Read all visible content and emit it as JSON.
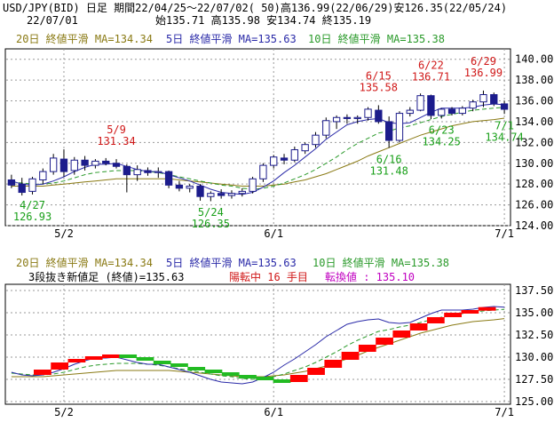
{
  "header": {
    "line1": "USD/JPY(BID) 日足 期間22/04/25～22/07/02( 50)高136.99(22/06/29)安126.35(22/05/24)",
    "line2_date": "22/07/01",
    "line2_ohlc": "始135.71 高135.98 安134.74 終135.19"
  },
  "legend": {
    "ma20": "20日 終値平滑 MA=134.34",
    "ma5": "5日 終値平滑 MA=135.63",
    "ma10": "10日 終値平滑 MA=135.38"
  },
  "indicator": {
    "label_a": "3段抜き新値足 (終値)=135.63",
    "label_b": "陽転中 16 手目",
    "label_c": "転換値 : 135.10"
  },
  "colors": {
    "up_candle": "#ffffff",
    "down_candle": "#1c1c8c",
    "ma5": "#2a2aa8",
    "ma10": "#2a9a2a",
    "ma20": "#8a7a14",
    "high_label": "#d01818",
    "low_label": "#1aa01a",
    "block_up": "#ff0000",
    "block_down": "#22bb22"
  },
  "chart_data": [
    {
      "type": "candlestick",
      "x_ticks": [
        "5/2",
        "6/1",
        "7/1"
      ],
      "y_ticks": [
        "124.00",
        "126.00",
        "128.00",
        "130.00",
        "132.00",
        "134.00",
        "136.00",
        "138.00",
        "140.00"
      ],
      "ylim": [
        124,
        141
      ],
      "annotations": [
        {
          "date": "4/27",
          "value": "126.93",
          "kind": "low"
        },
        {
          "date": "5/9",
          "value": "131.34",
          "kind": "high"
        },
        {
          "date": "5/24",
          "value": "126.35",
          "kind": "low"
        },
        {
          "date": "6/15",
          "value": "135.58",
          "kind": "high"
        },
        {
          "date": "6/16",
          "value": "131.48",
          "kind": "low"
        },
        {
          "date": "6/22",
          "value": "136.71",
          "kind": "high"
        },
        {
          "date": "6/23",
          "value": "134.25",
          "kind": "low"
        },
        {
          "date": "6/29",
          "value": "136.99",
          "kind": "high"
        },
        {
          "date": "7/1",
          "value": "134.74",
          "kind": "low"
        }
      ],
      "candles": [
        {
          "o": 128.4,
          "h": 128.9,
          "l": 127.6,
          "c": 127.9
        },
        {
          "o": 128.0,
          "h": 128.6,
          "l": 126.9,
          "c": 127.2
        },
        {
          "o": 127.3,
          "h": 128.7,
          "l": 127.0,
          "c": 128.5
        },
        {
          "o": 128.4,
          "h": 129.5,
          "l": 128.0,
          "c": 129.2
        },
        {
          "o": 129.2,
          "h": 130.9,
          "l": 128.9,
          "c": 130.5
        },
        {
          "o": 130.4,
          "h": 131.34,
          "l": 128.7,
          "c": 129.2
        },
        {
          "o": 129.3,
          "h": 130.6,
          "l": 128.9,
          "c": 130.3
        },
        {
          "o": 130.3,
          "h": 130.7,
          "l": 129.3,
          "c": 129.8
        },
        {
          "o": 129.8,
          "h": 130.4,
          "l": 129.5,
          "c": 130.2
        },
        {
          "o": 130.2,
          "h": 130.5,
          "l": 129.8,
          "c": 130.0
        },
        {
          "o": 130.0,
          "h": 130.4,
          "l": 129.5,
          "c": 129.7
        },
        {
          "o": 129.7,
          "h": 129.9,
          "l": 127.2,
          "c": 128.9
        },
        {
          "o": 128.9,
          "h": 129.8,
          "l": 128.3,
          "c": 129.4
        },
        {
          "o": 129.3,
          "h": 129.6,
          "l": 128.8,
          "c": 129.1
        },
        {
          "o": 129.1,
          "h": 129.6,
          "l": 128.6,
          "c": 129.2
        },
        {
          "o": 129.2,
          "h": 129.3,
          "l": 127.6,
          "c": 127.9
        },
        {
          "o": 127.9,
          "h": 128.3,
          "l": 127.3,
          "c": 127.6
        },
        {
          "o": 127.6,
          "h": 128.0,
          "l": 127.2,
          "c": 127.8
        },
        {
          "o": 127.8,
          "h": 128.0,
          "l": 126.4,
          "c": 126.8
        },
        {
          "o": 126.8,
          "h": 127.3,
          "l": 126.35,
          "c": 127.1
        },
        {
          "o": 127.1,
          "h": 127.5,
          "l": 126.6,
          "c": 126.9
        },
        {
          "o": 126.9,
          "h": 127.4,
          "l": 126.6,
          "c": 127.1
        },
        {
          "o": 127.1,
          "h": 127.6,
          "l": 126.8,
          "c": 127.3
        },
        {
          "o": 127.3,
          "h": 128.7,
          "l": 127.1,
          "c": 128.5
        },
        {
          "o": 128.5,
          "h": 130.0,
          "l": 128.2,
          "c": 129.8
        },
        {
          "o": 129.8,
          "h": 130.8,
          "l": 129.5,
          "c": 130.6
        },
        {
          "o": 130.5,
          "h": 130.9,
          "l": 129.9,
          "c": 130.3
        },
        {
          "o": 130.3,
          "h": 131.6,
          "l": 130.1,
          "c": 131.3
        },
        {
          "o": 131.2,
          "h": 132.0,
          "l": 130.9,
          "c": 131.8
        },
        {
          "o": 131.8,
          "h": 133.0,
          "l": 131.5,
          "c": 132.7
        },
        {
          "o": 132.7,
          "h": 134.4,
          "l": 132.4,
          "c": 134.1
        },
        {
          "o": 134.0,
          "h": 134.6,
          "l": 133.3,
          "c": 134.4
        },
        {
          "o": 134.4,
          "h": 134.7,
          "l": 133.8,
          "c": 134.3
        },
        {
          "o": 134.3,
          "h": 134.6,
          "l": 133.8,
          "c": 134.4
        },
        {
          "o": 134.4,
          "h": 135.4,
          "l": 134.1,
          "c": 135.2
        },
        {
          "o": 135.1,
          "h": 135.58,
          "l": 133.8,
          "c": 134.0
        },
        {
          "o": 134.0,
          "h": 134.5,
          "l": 131.48,
          "c": 132.2
        },
        {
          "o": 132.2,
          "h": 135.0,
          "l": 132.0,
          "c": 134.8
        },
        {
          "o": 134.8,
          "h": 135.4,
          "l": 134.5,
          "c": 135.1
        },
        {
          "o": 135.1,
          "h": 136.71,
          "l": 135.0,
          "c": 136.5
        },
        {
          "o": 136.5,
          "h": 136.6,
          "l": 134.25,
          "c": 134.6
        },
        {
          "o": 134.6,
          "h": 135.3,
          "l": 134.3,
          "c": 135.2
        },
        {
          "o": 135.2,
          "h": 135.4,
          "l": 134.6,
          "c": 134.8
        },
        {
          "o": 134.8,
          "h": 135.5,
          "l": 134.6,
          "c": 135.3
        },
        {
          "o": 135.3,
          "h": 136.1,
          "l": 135.0,
          "c": 135.9
        },
        {
          "o": 135.9,
          "h": 136.99,
          "l": 135.4,
          "c": 136.6
        },
        {
          "o": 136.6,
          "h": 136.8,
          "l": 135.5,
          "c": 135.7
        },
        {
          "o": 135.71,
          "h": 135.98,
          "l": 134.74,
          "c": 135.19
        }
      ],
      "ma5": [
        128.3,
        128.0,
        127.9,
        128.0,
        128.3,
        128.7,
        129.2,
        129.6,
        129.9,
        129.9,
        130.0,
        129.7,
        129.4,
        129.2,
        129.2,
        128.9,
        128.6,
        128.3,
        127.9,
        127.5,
        127.2,
        127.1,
        127.0,
        127.2,
        127.7,
        128.3,
        129.1,
        129.8,
        130.6,
        131.4,
        132.3,
        133.0,
        133.7,
        134.0,
        134.2,
        134.3,
        133.9,
        133.8,
        133.9,
        134.4,
        134.9,
        135.3,
        135.3,
        135.3,
        135.4,
        135.6,
        135.7,
        135.63
      ],
      "ma10": [
        128.2,
        128.1,
        128.0,
        128.0,
        128.1,
        128.3,
        128.6,
        128.9,
        129.1,
        129.2,
        129.3,
        129.3,
        129.3,
        129.2,
        129.1,
        128.9,
        128.7,
        128.5,
        128.3,
        128.1,
        127.9,
        127.8,
        127.6,
        127.5,
        127.6,
        127.8,
        128.1,
        128.5,
        128.9,
        129.4,
        130.0,
        130.6,
        131.3,
        131.9,
        132.4,
        132.9,
        133.1,
        133.4,
        133.6,
        133.9,
        134.2,
        134.5,
        134.7,
        134.9,
        135.1,
        135.2,
        135.3,
        135.38
      ],
      "ma20": [
        127.8,
        127.8,
        127.8,
        127.8,
        127.9,
        128.0,
        128.1,
        128.2,
        128.3,
        128.4,
        128.5,
        128.5,
        128.5,
        128.5,
        128.5,
        128.5,
        128.4,
        128.3,
        128.2,
        128.1,
        128.0,
        127.9,
        127.8,
        127.8,
        127.8,
        127.9,
        128.0,
        128.2,
        128.4,
        128.7,
        129.0,
        129.4,
        129.8,
        130.2,
        130.7,
        131.1,
        131.5,
        131.9,
        132.3,
        132.7,
        133.0,
        133.3,
        133.6,
        133.8,
        134.0,
        134.1,
        134.2,
        134.34
      ]
    },
    {
      "type": "new-price-blocks",
      "x_ticks": [
        "5/2",
        "6/1",
        "7/1"
      ],
      "y_ticks": [
        "125.00",
        "127.50",
        "130.00",
        "132.50",
        "135.00",
        "137.50"
      ],
      "ylim": [
        124.7,
        138.2
      ],
      "blocks": [
        {
          "from": 128.0,
          "to": 128.6,
          "dir": "up"
        },
        {
          "from": 128.6,
          "to": 129.4,
          "dir": "up"
        },
        {
          "from": 129.4,
          "to": 129.8,
          "dir": "up"
        },
        {
          "from": 129.8,
          "to": 130.1,
          "dir": "up"
        },
        {
          "from": 130.1,
          "to": 130.3,
          "dir": "up"
        },
        {
          "from": 130.3,
          "to": 130.0,
          "dir": "down"
        },
        {
          "from": 130.0,
          "to": 129.6,
          "dir": "down"
        },
        {
          "from": 129.6,
          "to": 129.3,
          "dir": "down"
        },
        {
          "from": 129.3,
          "to": 128.9,
          "dir": "down"
        },
        {
          "from": 128.9,
          "to": 128.6,
          "dir": "down"
        },
        {
          "from": 128.6,
          "to": 128.3,
          "dir": "down"
        },
        {
          "from": 128.3,
          "to": 128.0,
          "dir": "down"
        },
        {
          "from": 128.0,
          "to": 127.8,
          "dir": "down"
        },
        {
          "from": 127.8,
          "to": 127.5,
          "dir": "down"
        },
        {
          "from": 127.5,
          "to": 127.2,
          "dir": "down"
        },
        {
          "from": 127.2,
          "to": 128.0,
          "dir": "up"
        },
        {
          "from": 128.0,
          "to": 128.8,
          "dir": "up"
        },
        {
          "from": 128.8,
          "to": 129.7,
          "dir": "up"
        },
        {
          "from": 129.7,
          "to": 130.6,
          "dir": "up"
        },
        {
          "from": 130.6,
          "to": 131.4,
          "dir": "up"
        },
        {
          "from": 131.4,
          "to": 132.2,
          "dir": "up"
        },
        {
          "from": 132.2,
          "to": 133.0,
          "dir": "up"
        },
        {
          "from": 133.0,
          "to": 133.8,
          "dir": "up"
        },
        {
          "from": 133.8,
          "to": 134.5,
          "dir": "up"
        },
        {
          "from": 134.5,
          "to": 135.0,
          "dir": "up"
        },
        {
          "from": 135.0,
          "to": 135.3,
          "dir": "up"
        },
        {
          "from": 135.3,
          "to": 135.63,
          "dir": "up"
        }
      ]
    }
  ]
}
